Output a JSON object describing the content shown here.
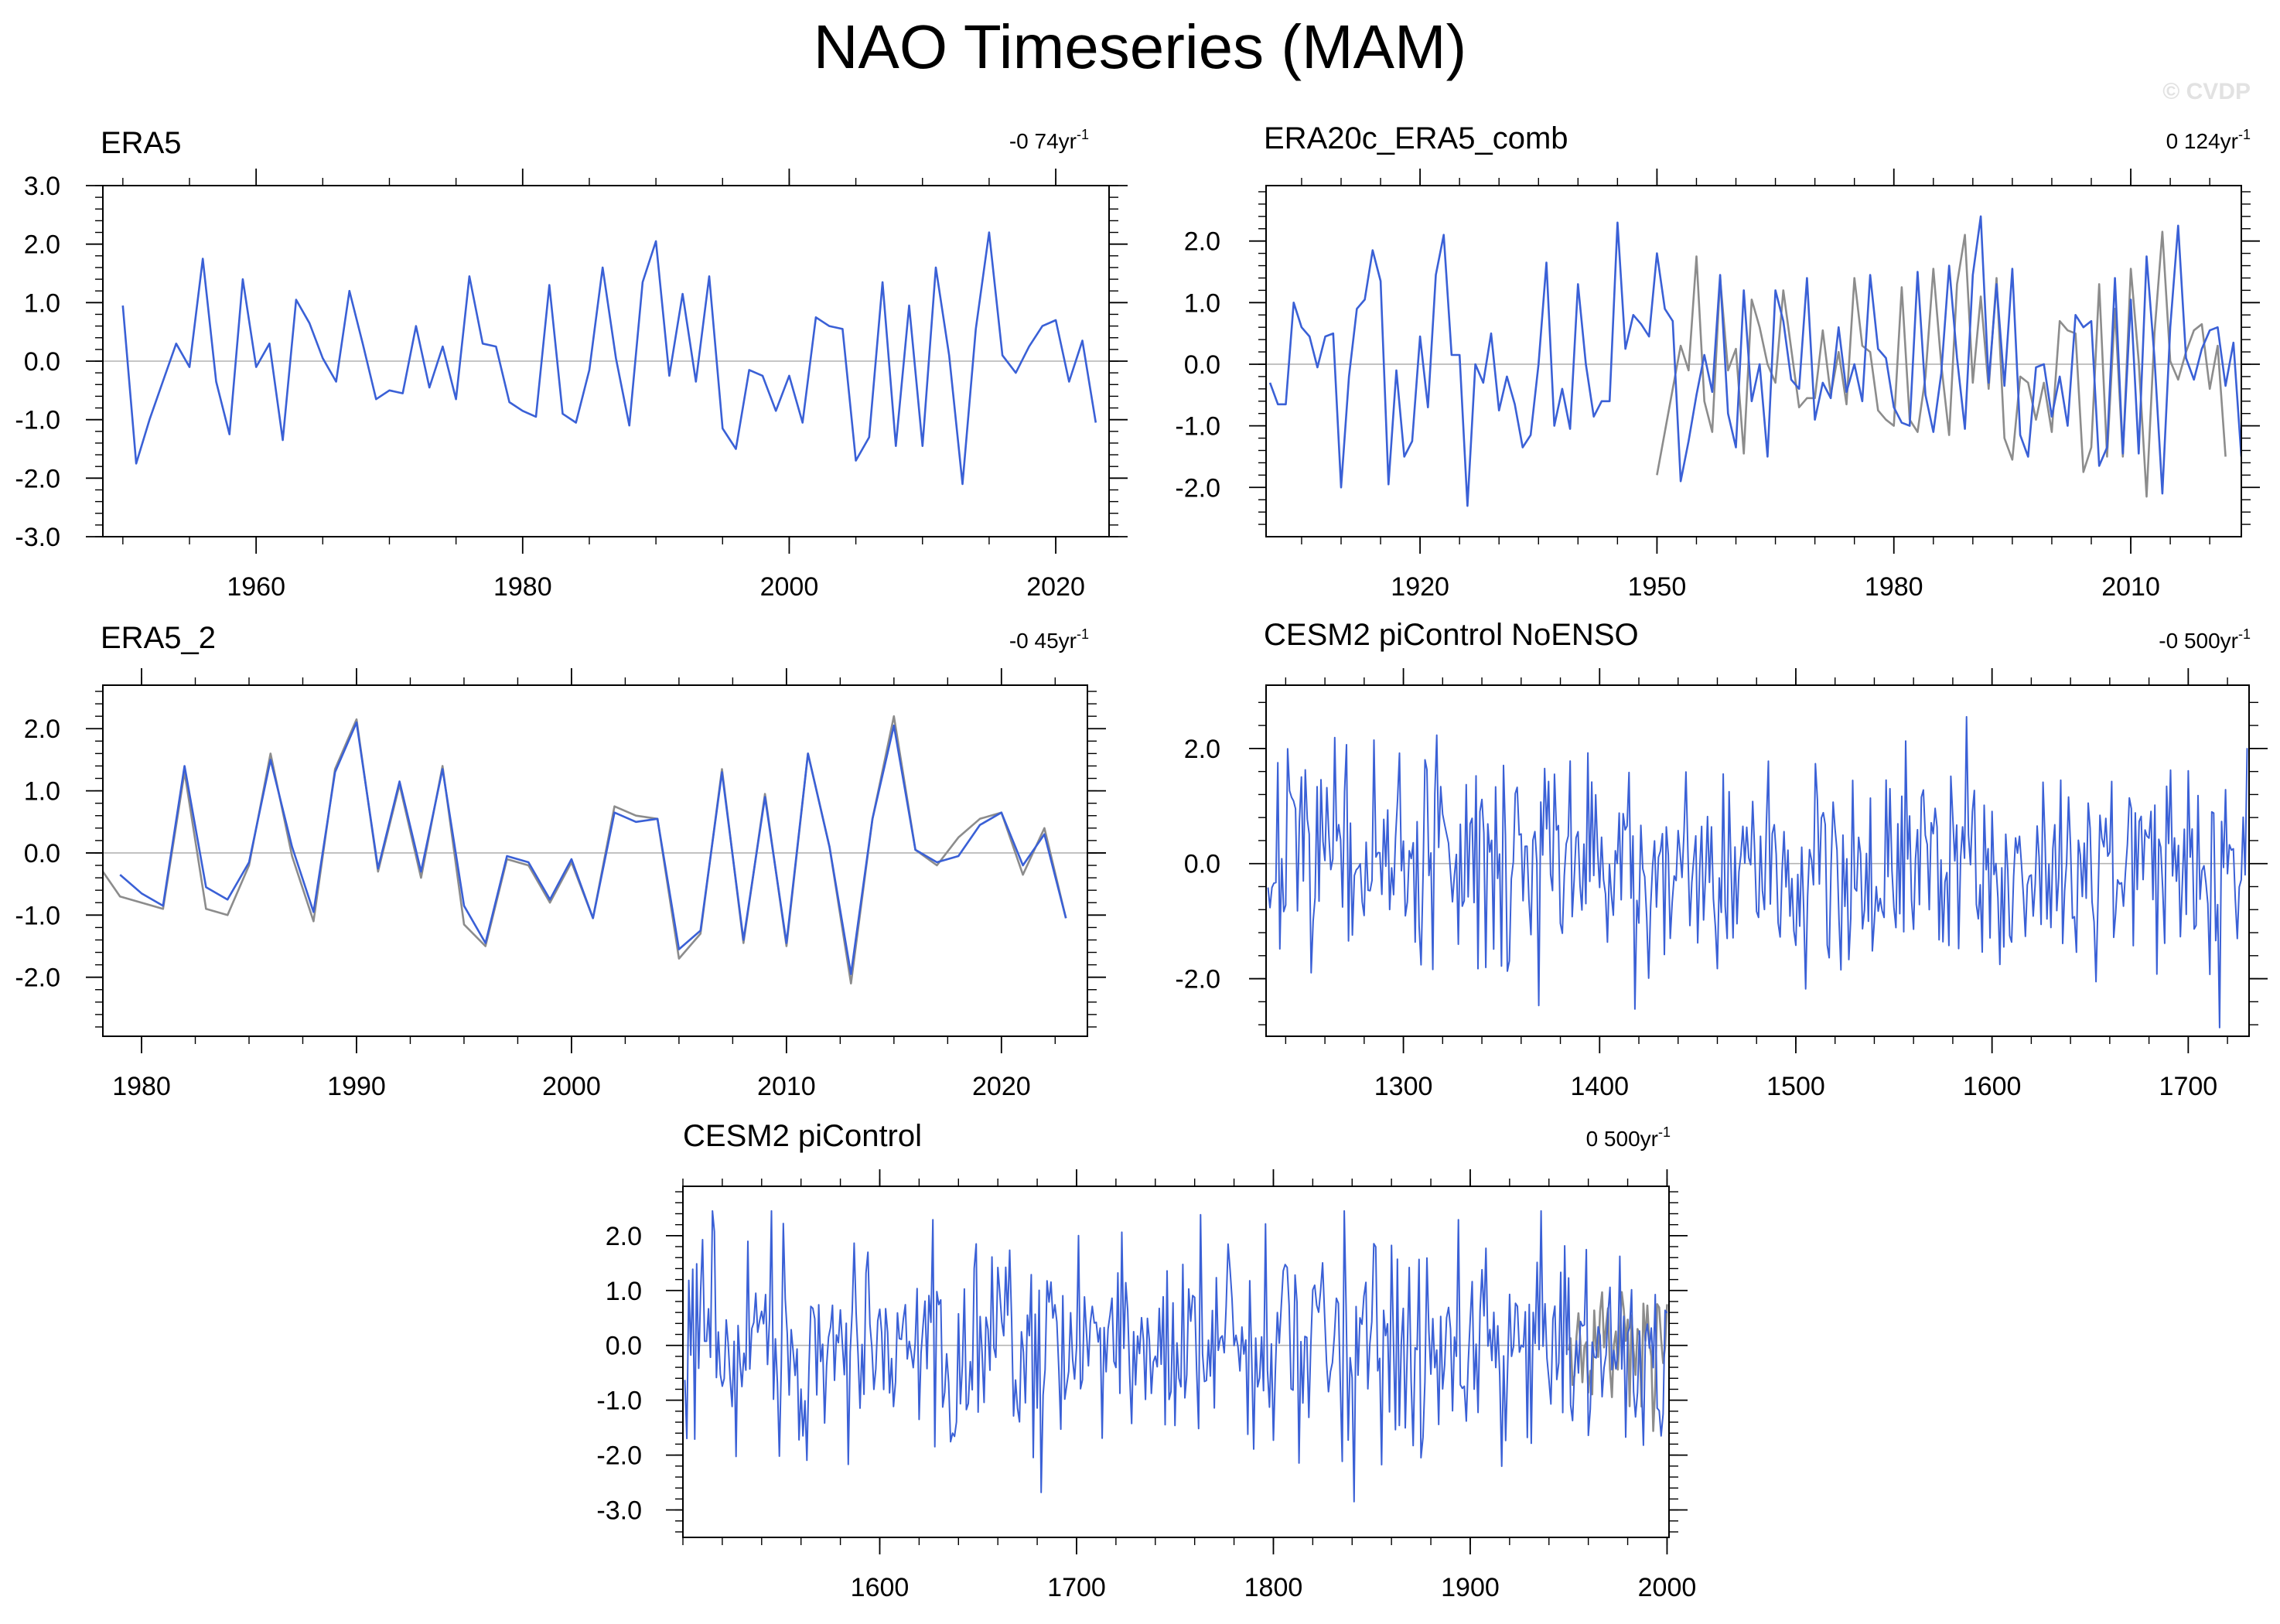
{
  "page": {
    "title": "NAO Timeseries (MAM)",
    "copyright": "© CVDP"
  },
  "colors": {
    "main_series": "#3a60d6",
    "reference_series": "#8c8c8c",
    "zero_line": "#b4b4b4",
    "frame": "#000000"
  },
  "chart_data": [
    {
      "id": "era5",
      "type": "line",
      "title": "ERA5",
      "trend_label": "-0 74yr",
      "trend_unit_sup": "-1",
      "xlim": [
        1948.5,
        2024.0
      ],
      "ylim": [
        -3.0,
        3.0
      ],
      "xticks": [
        1960,
        1980,
        2000,
        2020
      ],
      "yticks": [
        -3.0,
        -2.0,
        -1.0,
        0.0,
        1.0,
        2.0,
        3.0
      ],
      "zero_line": true,
      "series": [
        {
          "name": "ERA5",
          "role": "main",
          "x_start": 1950,
          "values": [
            0.95,
            -1.75,
            -1.0,
            -0.35,
            0.3,
            -0.1,
            1.75,
            -0.35,
            -1.25,
            1.4,
            -0.1,
            0.3,
            -1.35,
            1.05,
            0.65,
            0.05,
            -0.35,
            1.2,
            0.3,
            -0.65,
            -0.5,
            -0.55,
            0.6,
            -0.45,
            0.25,
            -0.65,
            1.45,
            0.3,
            0.25,
            -0.7,
            -0.85,
            -0.95,
            1.3,
            -0.9,
            -1.05,
            -0.15,
            1.6,
            0.05,
            -1.1,
            1.35,
            2.05,
            -0.25,
            1.15,
            -0.35,
            1.45,
            -1.15,
            -1.5,
            -0.15,
            -0.25,
            -0.85,
            -0.25,
            -1.05,
            0.75,
            0.6,
            0.55,
            -1.7,
            -1.3,
            1.35,
            -1.45,
            0.95,
            -1.45,
            1.6,
            0.1,
            -2.1,
            0.55,
            2.2,
            0.1,
            -0.2,
            0.25,
            0.6,
            0.7,
            -0.35,
            0.35,
            -1.05
          ]
        }
      ]
    },
    {
      "id": "era20c_era5_comb",
      "type": "line",
      "title": "ERA20c_ERA5_comb",
      "trend_label": "0 124yr",
      "trend_unit_sup": "-1",
      "xlim": [
        1900.5,
        2024.0
      ],
      "ylim": [
        -2.8,
        2.9
      ],
      "xticks": [
        1920,
        1950,
        1980,
        2010
      ],
      "yticks": [
        -2.0,
        -1.0,
        0.0,
        1.0,
        2.0
      ],
      "zero_line": true,
      "series": [
        {
          "name": "reference",
          "role": "reference",
          "x_start": 1950,
          "values": [
            -1.8,
            -1.1,
            -0.4,
            0.3,
            -0.1,
            1.75,
            -0.6,
            -1.1,
            1.4,
            -0.1,
            0.25,
            -1.45,
            1.05,
            0.6,
            0.0,
            -0.3,
            1.2,
            0.25,
            -0.7,
            -0.55,
            -0.55,
            0.55,
            -0.5,
            0.2,
            -0.65,
            1.4,
            0.3,
            0.2,
            -0.75,
            -0.9,
            -1.0,
            1.25,
            -0.9,
            -1.1,
            -0.2,
            1.55,
            0.0,
            -1.15,
            1.3,
            2.1,
            -0.3,
            1.1,
            -0.4,
            1.4,
            -1.2,
            -1.55,
            -0.2,
            -0.3,
            -0.9,
            -0.3,
            -1.1,
            0.7,
            0.55,
            0.5,
            -1.75,
            -1.35,
            1.3,
            -1.5,
            0.9,
            -1.5,
            1.55,
            0.05,
            -2.15,
            0.5,
            2.15,
            0.05,
            -0.25,
            0.2,
            0.55,
            0.65,
            -0.4,
            0.3,
            -1.5
          ]
        },
        {
          "name": "ERA20c_ERA5_comb",
          "role": "main",
          "x_start": 1901,
          "values": [
            -0.3,
            -0.65,
            -0.65,
            1.0,
            0.6,
            0.45,
            -0.05,
            0.45,
            0.5,
            -2.0,
            -0.2,
            0.9,
            1.05,
            1.85,
            1.35,
            -1.95,
            -0.1,
            -1.5,
            -1.25,
            0.45,
            -0.7,
            1.45,
            2.1,
            0.15,
            0.15,
            -2.3,
            0.0,
            -0.3,
            0.5,
            -0.75,
            -0.2,
            -0.65,
            -1.35,
            -1.15,
            0.0,
            1.65,
            -1.0,
            -0.4,
            -1.05,
            1.3,
            0.0,
            -0.85,
            -0.6,
            -0.6,
            2.3,
            0.25,
            0.8,
            0.65,
            0.45,
            1.8,
            0.9,
            0.7,
            -1.9,
            -1.25,
            -0.5,
            0.15,
            -0.45,
            1.45,
            -0.8,
            -1.35,
            1.2,
            -0.6,
            0.0,
            -1.5,
            1.2,
            0.7,
            -0.25,
            -0.4,
            1.4,
            -0.9,
            -0.3,
            -0.55,
            0.6,
            -0.45,
            0.0,
            -0.6,
            1.45,
            0.25,
            0.1,
            -0.7,
            -0.95,
            -1.0,
            1.5,
            -0.5,
            -1.1,
            -0.15,
            1.6,
            0.1,
            -1.05,
            1.45,
            2.4,
            -0.3,
            1.3,
            -0.35,
            1.55,
            -1.15,
            -1.5,
            -0.05,
            0.0,
            -0.85,
            -0.2,
            -1.0,
            0.8,
            0.6,
            0.7,
            -1.65,
            -1.35,
            1.4,
            -1.45,
            1.05,
            -1.45,
            1.75,
            0.1,
            -2.1,
            0.6,
            2.25,
            0.1,
            -0.25,
            0.25,
            0.55,
            0.6,
            -0.35,
            0.35,
            -1.5
          ]
        }
      ]
    },
    {
      "id": "era5_2",
      "type": "line",
      "title": "ERA5_2",
      "trend_label": "-0 45yr",
      "trend_unit_sup": "-1",
      "xlim": [
        1978.2,
        2024.0
      ],
      "ylim": [
        -2.95,
        2.7
      ],
      "xticks": [
        1980,
        1990,
        2000,
        2010,
        2020
      ],
      "yticks": [
        -2.0,
        -1.0,
        0.0,
        1.0,
        2.0
      ],
      "zero_line": true,
      "series": [
        {
          "name": "reference",
          "role": "reference",
          "x_start": 1978,
          "values": [
            -0.2,
            -0.7,
            -0.8,
            -0.9,
            1.3,
            -0.9,
            -1.0,
            -0.2,
            1.6,
            -0.05,
            -1.1,
            1.35,
            2.15,
            -0.3,
            1.1,
            -0.4,
            1.4,
            -1.15,
            -1.5,
            -0.1,
            -0.2,
            -0.8,
            -0.15,
            -1.05,
            0.75,
            0.6,
            0.55,
            -1.7,
            -1.3,
            1.35,
            -1.45,
            0.95,
            -1.5,
            1.6,
            0.1,
            -2.1,
            0.55,
            2.2,
            0.05,
            -0.2,
            0.25,
            0.55,
            0.65,
            -0.35,
            0.4,
            -1.05
          ]
        },
        {
          "name": "ERA5_2",
          "role": "main",
          "x_start": 1979,
          "values": [
            -0.35,
            -0.65,
            -0.85,
            1.4,
            -0.55,
            -0.75,
            -0.15,
            1.5,
            0.1,
            -0.95,
            1.3,
            2.1,
            -0.25,
            1.15,
            -0.3,
            1.35,
            -0.85,
            -1.45,
            -0.05,
            -0.15,
            -0.75,
            -0.1,
            -1.05,
            0.65,
            0.5,
            0.55,
            -1.55,
            -1.25,
            1.3,
            -1.4,
            0.9,
            -1.45,
            1.6,
            0.1,
            -1.95,
            0.55,
            2.05,
            0.05,
            -0.15,
            -0.05,
            0.45,
            0.65,
            -0.2,
            0.3,
            -1.05
          ]
        }
      ]
    },
    {
      "id": "cesm2_picontrol_noenso",
      "type": "line",
      "title": "CESM2 piControl NoENSO",
      "trend_label": "-0 500yr",
      "trend_unit_sup": "-1",
      "xlim": [
        1230,
        1731
      ],
      "ylim": [
        -3.0,
        3.1
      ],
      "xticks": [
        1300,
        1400,
        1500,
        1600,
        1700
      ],
      "yticks": [
        -2.0,
        0.0,
        2.0
      ],
      "zero_line": true,
      "series": [
        {
          "name": "CESM2 piControl NoENSO",
          "role": "main",
          "x_start": 1231,
          "length": 500,
          "amplitude": 0.95,
          "seed": 7,
          "min_value": -2.85,
          "max_value": 2.55
        }
      ]
    },
    {
      "id": "cesm2_picontrol",
      "type": "line",
      "title": "CESM2 piControl",
      "trend_label": "0 500yr",
      "trend_unit_sup": "-1",
      "xlim": [
        1500,
        2001
      ],
      "ylim": [
        -3.5,
        2.9
      ],
      "xticks": [
        1600,
        1700,
        1800,
        1900,
        2000
      ],
      "yticks": [
        -3.0,
        -2.0,
        -1.0,
        0.0,
        1.0,
        2.0
      ],
      "zero_line": true,
      "series": [
        {
          "name": "reference",
          "role": "reference",
          "x_start": 1950,
          "length": 51,
          "amplitude": 0.7,
          "seed": 19,
          "min_value": -2.0,
          "max_value": 2.1
        },
        {
          "name": "CESM2 piControl",
          "role": "main",
          "x_start": 1501,
          "length": 500,
          "amplitude": 1.0,
          "seed": 3,
          "min_value": -3.05,
          "max_value": 2.45
        }
      ]
    }
  ]
}
